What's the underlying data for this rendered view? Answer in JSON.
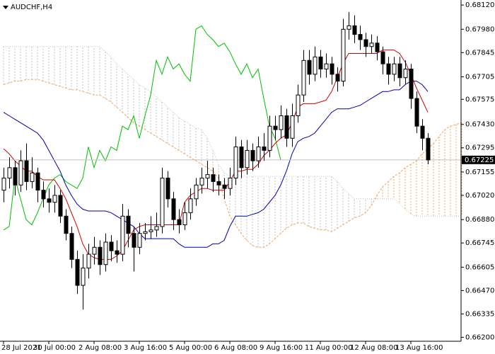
{
  "chart_data": {
    "type": "candlestick",
    "title": "AUDCHF,H4",
    "xlim": [
      -0.625,
      80.875
    ],
    "ylim": [
      0.66177,
      0.68149
    ],
    "xticks": [
      {
        "value": 0,
        "label": "28 Jul 2021"
      },
      {
        "value": 8,
        "label": "30 Jul 00:00"
      },
      {
        "value": 16,
        "label": "2 Aug 08:00"
      },
      {
        "value": 24,
        "label": "3 Aug 16:00"
      },
      {
        "value": 32,
        "label": "5 Aug 00:00"
      },
      {
        "value": 40,
        "label": "6 Aug 08:00"
      },
      {
        "value": 48,
        "label": "9 Aug 16:00"
      },
      {
        "value": 56,
        "label": "11 Aug 00:00"
      },
      {
        "value": 64,
        "label": "12 Aug 08:00"
      },
      {
        "value": 72,
        "label": "13 Aug 16:00"
      }
    ],
    "yticks": [
      {
        "value": 0.6812,
        "label": "0.68120"
      },
      {
        "value": 0.6798,
        "label": "0.67980"
      },
      0.67845,
      0.67705,
      0.67575,
      {
        "value": 0.6743,
        "label": "0.67430"
      },
      0.67295,
      0.67155,
      {
        "value": 0.6702,
        "label": "0.67020"
      },
      {
        "value": 0.6688,
        "label": "0.66880"
      },
      0.66745,
      0.66605,
      {
        "value": 0.6647,
        "label": "0.66470"
      },
      0.66335,
      {
        "value": 0.662,
        "label": "0.66200"
      }
    ],
    "last_price": 0.67225,
    "candles": {
      "up_color": "#ffffff",
      "down_color": "#000000",
      "outline": "#000000",
      "open": [
        0.6705,
        0.6712,
        0.6718,
        0.6708,
        0.6722,
        0.671,
        0.6715,
        0.6705,
        0.67,
        0.6698,
        0.6702,
        0.669,
        0.668,
        0.6665,
        0.665,
        0.666,
        0.6668,
        0.6672,
        0.6662,
        0.6675,
        0.667,
        0.6668,
        0.669,
        0.668,
        0.6672,
        0.668,
        0.6681,
        0.6682,
        0.6684,
        0.6712,
        0.67,
        0.6688,
        0.6685,
        0.6692,
        0.67,
        0.6708,
        0.6712,
        0.6714,
        0.671,
        0.6708,
        0.6706,
        0.6712,
        0.673,
        0.6718,
        0.6728,
        0.6722,
        0.673,
        0.6728,
        0.6742,
        0.674,
        0.6748,
        0.6735,
        0.6748,
        0.676,
        0.678,
        0.6772,
        0.6782,
        0.6775,
        0.6778,
        0.6772,
        0.6768,
        0.6798,
        0.68,
        0.6795,
        0.6792,
        0.6788,
        0.679,
        0.6785,
        0.6778,
        0.6772,
        0.6778,
        0.677,
        0.6775,
        0.6758,
        0.6742,
        0.6735
      ],
      "high": [
        0.6718,
        0.6724,
        0.6722,
        0.6728,
        0.6732,
        0.6724,
        0.6718,
        0.671,
        0.6706,
        0.6708,
        0.6705,
        0.6694,
        0.6684,
        0.667,
        0.6668,
        0.6674,
        0.6678,
        0.6676,
        0.668,
        0.6679,
        0.6676,
        0.6697,
        0.6694,
        0.6684,
        0.6686,
        0.6686,
        0.669,
        0.6692,
        0.6718,
        0.6716,
        0.6704,
        0.6694,
        0.6698,
        0.6706,
        0.6712,
        0.6718,
        0.6722,
        0.6718,
        0.6714,
        0.6712,
        0.6718,
        0.6736,
        0.6734,
        0.6734,
        0.6732,
        0.6736,
        0.6738,
        0.6748,
        0.6748,
        0.6754,
        0.6752,
        0.6755,
        0.6766,
        0.6786,
        0.6786,
        0.6788,
        0.6786,
        0.6784,
        0.6782,
        0.6776,
        0.6804,
        0.6808,
        0.6806,
        0.68,
        0.6796,
        0.6795,
        0.6794,
        0.6788,
        0.6782,
        0.6782,
        0.6782,
        0.678,
        0.6778,
        0.6762,
        0.6746,
        0.6738
      ],
      "low": [
        0.6698,
        0.6706,
        0.6702,
        0.6704,
        0.6705,
        0.6706,
        0.6698,
        0.6695,
        0.6692,
        0.6692,
        0.6686,
        0.6676,
        0.666,
        0.6645,
        0.6636,
        0.6654,
        0.6662,
        0.6656,
        0.6658,
        0.6664,
        0.6663,
        0.6664,
        0.6672,
        0.6658,
        0.6668,
        0.6676,
        0.6677,
        0.6678,
        0.668,
        0.6695,
        0.6682,
        0.668,
        0.6682,
        0.6688,
        0.6696,
        0.6703,
        0.6706,
        0.6704,
        0.6702,
        0.67,
        0.6702,
        0.6708,
        0.6712,
        0.6714,
        0.6716,
        0.6718,
        0.6722,
        0.6724,
        0.6734,
        0.6735,
        0.673,
        0.673,
        0.6744,
        0.6756,
        0.6766,
        0.6768,
        0.677,
        0.677,
        0.6766,
        0.6762,
        0.6765,
        0.6792,
        0.679,
        0.6786,
        0.6782,
        0.6784,
        0.678,
        0.6772,
        0.6766,
        0.6768,
        0.6765,
        0.6766,
        0.6752,
        0.6738,
        0.6728,
        0.672
      ],
      "close": [
        0.6712,
        0.6718,
        0.6708,
        0.6722,
        0.671,
        0.6715,
        0.6705,
        0.67,
        0.6698,
        0.6702,
        0.669,
        0.668,
        0.6665,
        0.665,
        0.666,
        0.6668,
        0.6672,
        0.6662,
        0.6675,
        0.667,
        0.6668,
        0.669,
        0.668,
        0.6672,
        0.668,
        0.6681,
        0.6682,
        0.6684,
        0.6712,
        0.67,
        0.6688,
        0.6685,
        0.6692,
        0.67,
        0.6708,
        0.6712,
        0.6714,
        0.671,
        0.6708,
        0.6706,
        0.6712,
        0.673,
        0.6718,
        0.6728,
        0.6722,
        0.673,
        0.6728,
        0.6742,
        0.674,
        0.6748,
        0.6735,
        0.6748,
        0.676,
        0.678,
        0.6772,
        0.6782,
        0.6775,
        0.6778,
        0.6772,
        0.6768,
        0.6798,
        0.68,
        0.6795,
        0.6792,
        0.6788,
        0.679,
        0.6785,
        0.6778,
        0.6772,
        0.6778,
        0.677,
        0.6775,
        0.6758,
        0.6742,
        0.6735,
        0.67225
      ]
    },
    "tenkan": {
      "color": "#d00000",
      "values": [
        0.6729,
        0.6726,
        0.6722,
        0.6719,
        0.6716,
        0.6716,
        0.6713,
        0.6711,
        0.6711,
        0.6711,
        0.6706,
        0.67,
        0.6692,
        0.6684,
        0.6674,
        0.6668,
        0.6666,
        0.6665,
        0.6665,
        0.6665,
        0.6667,
        0.667,
        0.6676,
        0.6682,
        0.6684,
        0.6685,
        0.6685,
        0.6685,
        0.6685,
        0.6685,
        0.6685,
        0.6685,
        0.6698,
        0.6702,
        0.6704,
        0.6706,
        0.6706,
        0.6705,
        0.6705,
        0.6705,
        0.671,
        0.6716,
        0.6716,
        0.6717,
        0.6717,
        0.672,
        0.6725,
        0.6728,
        0.6732,
        0.6735,
        0.6737,
        0.6744,
        0.6753,
        0.6755,
        0.6755,
        0.6755,
        0.6756,
        0.6757,
        0.6762,
        0.677,
        0.6778,
        0.6784,
        0.6784,
        0.6784,
        0.6784,
        0.6784,
        0.6784,
        0.6786,
        0.6786,
        0.6786,
        0.6784,
        0.6779,
        0.6772,
        0.6764,
        0.6757,
        0.675
      ]
    },
    "kijun": {
      "color": "#0000b0",
      "values": [
        0.675,
        0.6748,
        0.6746,
        0.6744,
        0.6742,
        0.674,
        0.6738,
        0.6734,
        0.6728,
        0.6722,
        0.6716,
        0.6708,
        0.6702,
        0.6697,
        0.6694,
        0.6693,
        0.6693,
        0.6693,
        0.6693,
        0.6692,
        0.669,
        0.6688,
        0.6686,
        0.6684,
        0.668,
        0.6677,
        0.6677,
        0.6677,
        0.6677,
        0.6677,
        0.6677,
        0.6674,
        0.6672,
        0.6672,
        0.6672,
        0.6672,
        0.6672,
        0.6674,
        0.6674,
        0.6676,
        0.6684,
        0.669,
        0.669,
        0.669,
        0.6691,
        0.6692,
        0.6694,
        0.6698,
        0.6702,
        0.6708,
        0.6716,
        0.6726,
        0.6733,
        0.6735,
        0.6736,
        0.6738,
        0.6742,
        0.6746,
        0.675,
        0.6752,
        0.6752,
        0.6752,
        0.6753,
        0.6754,
        0.6756,
        0.6758,
        0.676,
        0.6762,
        0.6762,
        0.6763,
        0.6763,
        0.6766,
        0.6768,
        0.6768,
        0.6766,
        0.6762
      ]
    },
    "chikou": {
      "color": "#00c000",
      "values": [
        0.6682,
        0.6684,
        0.6712,
        0.67,
        0.6688,
        0.6685,
        0.6692,
        0.67,
        0.6708,
        0.6712,
        0.6714,
        0.671,
        0.6708,
        0.6706,
        0.6712,
        0.673,
        0.6718,
        0.6728,
        0.6722,
        0.673,
        0.6728,
        0.6742,
        0.674,
        0.6748,
        0.6735,
        0.6748,
        0.676,
        0.678,
        0.6772,
        0.6782,
        0.6775,
        0.6778,
        0.6772,
        0.6768,
        0.6798,
        0.68,
        0.6795,
        0.6792,
        0.6788,
        0.679,
        0.6785,
        0.6778,
        0.6772,
        0.6778,
        0.677,
        0.6775,
        0.6758,
        0.6742,
        0.6735,
        0.67225
      ]
    },
    "span_a": {
      "color": "#f4a460",
      "values": [
        0.6766,
        0.6767,
        0.6768,
        0.6768,
        0.6769,
        0.6769,
        0.6769,
        0.6768,
        0.6767,
        0.6766,
        0.6765,
        0.6764,
        0.6763,
        0.6763,
        0.6762,
        0.6761,
        0.676,
        0.676,
        0.6758,
        0.6756,
        0.6753,
        0.675,
        0.6747,
        0.6744,
        0.6742,
        0.674,
        0.6738,
        0.6736,
        0.6734,
        0.6732,
        0.673,
        0.6728,
        0.6726,
        0.6724,
        0.6722,
        0.672,
        0.6718,
        0.6716,
        0.6712,
        0.67,
        0.669,
        0.6685,
        0.668,
        0.6676,
        0.6673,
        0.6672,
        0.6672,
        0.6674,
        0.6677,
        0.668,
        0.6683,
        0.6685,
        0.6686,
        0.6686,
        0.6684,
        0.6683,
        0.6682,
        0.6682,
        0.6681,
        0.6683,
        0.6685,
        0.6687,
        0.6689,
        0.669,
        0.6692,
        0.6696,
        0.6702,
        0.6707,
        0.671,
        0.6713,
        0.6715,
        0.6718,
        0.672,
        0.6722,
        0.6726,
        0.6729,
        0.6732,
        0.6736,
        0.674,
        0.6742,
        0.6743,
        0.6744
      ]
    },
    "span_b": {
      "color": "#c0c0c0",
      "values": [
        0.6788,
        0.6788,
        0.6788,
        0.6788,
        0.6788,
        0.6788,
        0.6788,
        0.6788,
        0.6788,
        0.6788,
        0.6788,
        0.6788,
        0.6788,
        0.6788,
        0.6788,
        0.6788,
        0.6788,
        0.6788,
        0.6785,
        0.6782,
        0.6778,
        0.6775,
        0.6772,
        0.6769,
        0.6766,
        0.6764,
        0.6762,
        0.6759,
        0.6756,
        0.6753,
        0.675,
        0.6747,
        0.6745,
        0.6743,
        0.6741,
        0.674,
        0.6735,
        0.6728,
        0.672,
        0.6715,
        0.6713,
        0.6713,
        0.6713,
        0.6713,
        0.6713,
        0.6713,
        0.6713,
        0.6713,
        0.6713,
        0.6713,
        0.6713,
        0.6713,
        0.6713,
        0.6713,
        0.6713,
        0.6713,
        0.6713,
        0.6713,
        0.6713,
        0.671,
        0.6706,
        0.6703,
        0.67,
        0.67,
        0.67,
        0.67,
        0.67,
        0.67,
        0.67,
        0.67,
        0.6697,
        0.6694,
        0.6691,
        0.669,
        0.669,
        0.669,
        0.669,
        0.669,
        0.669,
        0.669,
        0.669,
        0.669
      ]
    }
  }
}
